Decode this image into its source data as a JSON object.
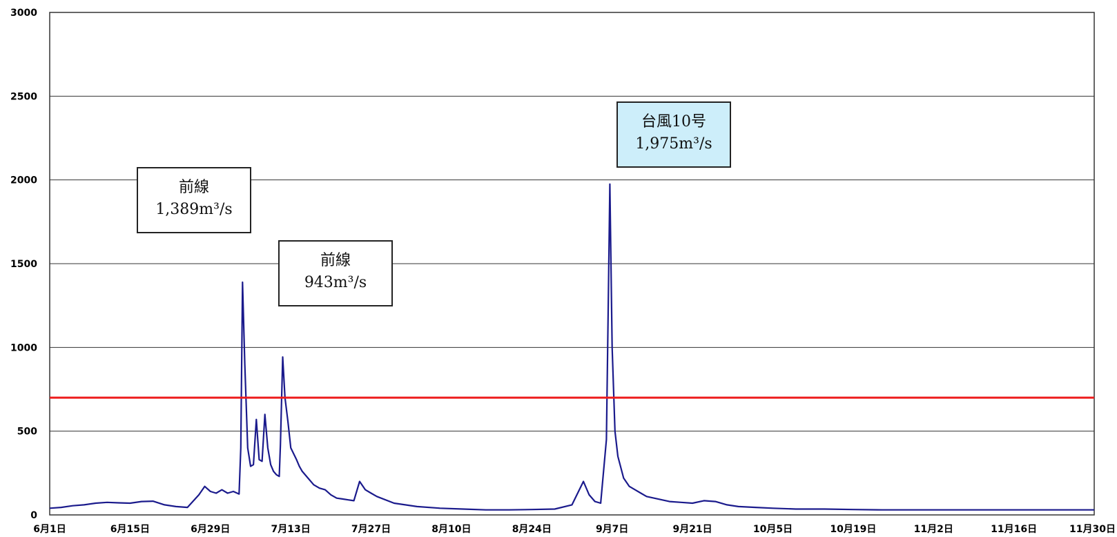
{
  "chart_data": {
    "type": "line",
    "x_ticks": [
      "6月1日",
      "6月15日",
      "6月29日",
      "7月13日",
      "7月27日",
      "8月10日",
      "8月24日",
      "9月7日",
      "9月21日",
      "10月5日",
      "10月19日",
      "11月2日",
      "11月16日",
      "11月30日"
    ],
    "y_ticks": [
      "0",
      "500",
      "1000",
      "1500",
      "2000",
      "2500",
      "3000"
    ],
    "ylim": [
      0,
      3000
    ],
    "x_range_days": [
      0,
      182
    ],
    "grid": "horizontal",
    "threshold": {
      "value": 700,
      "color": "#ee1c1c"
    },
    "series_color": "#1a1a8c",
    "series": [
      {
        "x": [
          0,
          2,
          4,
          6,
          8,
          10,
          12,
          14,
          16,
          18,
          20,
          22,
          24,
          26,
          27,
          28,
          29,
          30,
          31,
          32,
          33,
          33.3,
          33.6,
          34,
          34.5,
          35,
          35.5,
          36,
          36.5,
          37,
          37.5,
          38,
          38.5,
          39,
          39.5,
          40,
          40.2,
          40.6,
          41,
          41.5,
          42,
          43,
          43.5,
          44,
          45,
          46,
          47,
          48,
          49,
          50,
          51,
          52,
          53,
          54,
          55,
          56,
          57,
          60,
          64,
          68,
          72,
          76,
          80,
          84,
          88,
          91,
          93,
          94,
          95,
          96,
          97,
          97.3,
          97.6,
          98,
          98.5,
          99,
          100,
          101,
          102,
          103,
          104,
          106,
          108,
          110,
          112,
          114,
          116,
          118,
          120,
          123,
          126,
          130,
          135,
          140,
          145,
          150,
          155,
          160,
          165,
          170,
          175,
          180,
          182
        ],
        "values": [
          40,
          45,
          55,
          60,
          70,
          75,
          72,
          70,
          80,
          82,
          60,
          50,
          45,
          120,
          170,
          140,
          130,
          150,
          130,
          140,
          125,
          400,
          1389,
          900,
          400,
          290,
          300,
          570,
          330,
          320,
          600,
          400,
          300,
          260,
          240,
          230,
          420,
          943,
          700,
          560,
          400,
          330,
          290,
          260,
          220,
          180,
          160,
          150,
          120,
          100,
          95,
          90,
          85,
          200,
          150,
          130,
          110,
          70,
          50,
          40,
          35,
          30,
          30,
          32,
          35,
          60,
          200,
          120,
          80,
          70,
          450,
          1200,
          1975,
          1000,
          500,
          350,
          220,
          170,
          150,
          130,
          110,
          95,
          80,
          75,
          70,
          85,
          80,
          60,
          50,
          45,
          40,
          35,
          35,
          32,
          30,
          30,
          30,
          30,
          30,
          30,
          30,
          30,
          30
        ]
      }
    ],
    "annotations": [
      {
        "line1": "前線",
        "line2": "1,389m³/s",
        "style": "white"
      },
      {
        "line1": "前線",
        "line2": "943m³/s",
        "style": "white"
      },
      {
        "line1": "台風10号",
        "line2": "1,975m³/s",
        "style": "blue"
      }
    ]
  }
}
